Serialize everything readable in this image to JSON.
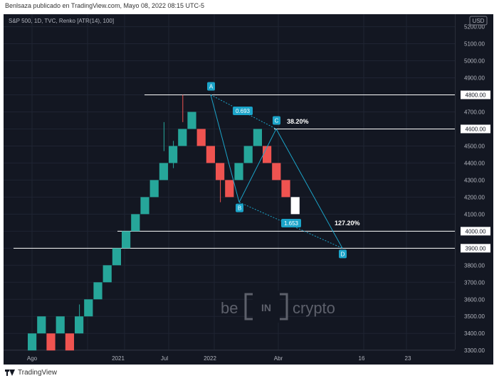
{
  "header": {
    "publisher_line": "Benlsaza publicado en TradingView.com, Mayo 08, 2022 08:15 UTC-5"
  },
  "footer": {
    "brand": "TradingView",
    "logo_icon": "tradingview-logo-icon"
  },
  "watermark": {
    "left": "be",
    "middle": "IN",
    "right": "crypto"
  },
  "colors": {
    "background": "#131722",
    "up": "#26a69a",
    "down": "#ef5350",
    "current": "#ffffff",
    "pattern": "#1ba4c9",
    "axis_text": "#b2b5be",
    "grid": "#1f2433"
  },
  "chart_data": {
    "type": "renko",
    "title": "S&P 500, 1D, TVC, Renko [ATR(14), 100]",
    "currency": "USD",
    "xlabel": "",
    "ylabel": "",
    "y_ticks": [
      3300,
      3400,
      3500,
      3600,
      3700,
      3800,
      3900,
      4000,
      4100,
      4200,
      4300,
      4400,
      4500,
      4600,
      4700,
      4800,
      4900,
      5000,
      5100,
      5200
    ],
    "ylim": [
      3290,
      5220
    ],
    "x_tick_labels": [
      "Ago",
      "2021",
      "Jul",
      "2022",
      "Abr",
      "16",
      "23"
    ],
    "brick_size": 100,
    "bricks": [
      {
        "open": 3300,
        "close": 3400,
        "dir": "up"
      },
      {
        "open": 3400,
        "close": 3500,
        "dir": "up"
      },
      {
        "open": 3400,
        "close": 3300,
        "dir": "down"
      },
      {
        "open": 3400,
        "close": 3500,
        "dir": "up"
      },
      {
        "open": 3400,
        "close": 3300,
        "dir": "down"
      },
      {
        "open": 3400,
        "close": 3500,
        "dir": "up"
      },
      {
        "open": 3500,
        "close": 3600,
        "dir": "up"
      },
      {
        "open": 3600,
        "close": 3700,
        "dir": "up"
      },
      {
        "open": 3700,
        "close": 3800,
        "dir": "up"
      },
      {
        "open": 3800,
        "close": 3900,
        "dir": "up"
      },
      {
        "open": 3900,
        "close": 4000,
        "dir": "up"
      },
      {
        "open": 4000,
        "close": 4100,
        "dir": "up"
      },
      {
        "open": 4100,
        "close": 4200,
        "dir": "up"
      },
      {
        "open": 4200,
        "close": 4300,
        "dir": "up"
      },
      {
        "open": 4300,
        "close": 4400,
        "dir": "up"
      },
      {
        "open": 4400,
        "close": 4500,
        "dir": "up"
      },
      {
        "open": 4500,
        "close": 4600,
        "dir": "up"
      },
      {
        "open": 4600,
        "close": 4700,
        "dir": "up"
      },
      {
        "open": 4600,
        "close": 4500,
        "dir": "down"
      },
      {
        "open": 4500,
        "close": 4400,
        "dir": "down"
      },
      {
        "open": 4400,
        "close": 4300,
        "dir": "down"
      },
      {
        "open": 4300,
        "close": 4200,
        "dir": "down"
      },
      {
        "open": 4300,
        "close": 4400,
        "dir": "up"
      },
      {
        "open": 4400,
        "close": 4500,
        "dir": "up"
      },
      {
        "open": 4500,
        "close": 4600,
        "dir": "up"
      },
      {
        "open": 4500,
        "close": 4400,
        "dir": "down"
      },
      {
        "open": 4400,
        "close": 4300,
        "dir": "down"
      },
      {
        "open": 4300,
        "close": 4200,
        "dir": "down"
      },
      {
        "open": 4200,
        "close": 4100,
        "dir": "current"
      }
    ],
    "horizontal_levels": [
      {
        "label": "4800.00",
        "value": 4800
      },
      {
        "label": "4600.00",
        "value": 4600
      },
      {
        "label": "4000.00",
        "value": 4000
      },
      {
        "label": "3900.00",
        "value": 3900
      }
    ],
    "pattern_points": [
      {
        "label": "A",
        "value": 4800
      },
      {
        "label": "B",
        "value": 4170
      },
      {
        "label": "C",
        "value": 4600
      },
      {
        "label": "D",
        "value": 3900
      }
    ],
    "annotations": [
      {
        "text": "0.693"
      },
      {
        "text": "1.653"
      },
      {
        "text": "38.20%"
      },
      {
        "text": "127.20%"
      }
    ]
  }
}
